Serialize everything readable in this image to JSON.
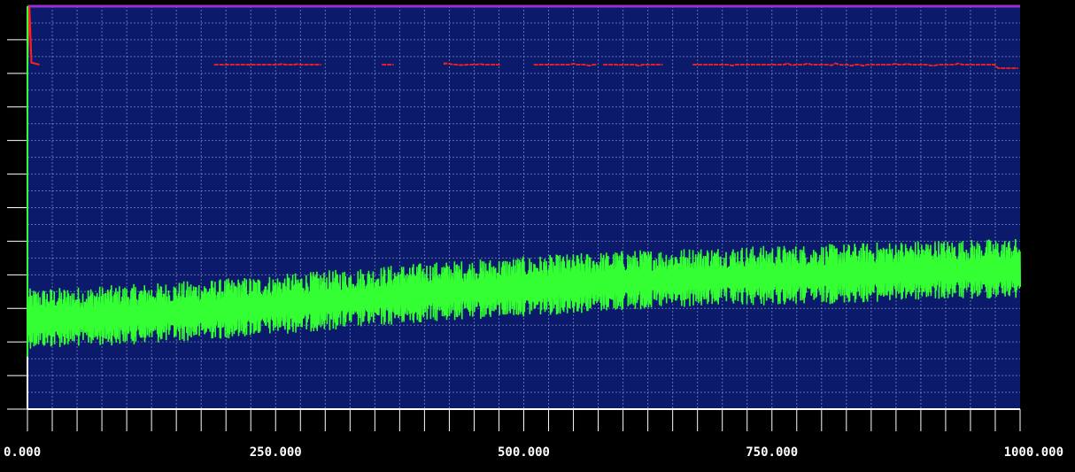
{
  "chart_data": {
    "type": "line",
    "title": "",
    "xlabel": "",
    "ylabel": "",
    "xlim": [
      0,
      1000
    ],
    "x_tick_labels": [
      "0.000",
      "250.000",
      "500.000",
      "750.000",
      "1000.000"
    ],
    "x_tick_values": [
      0,
      250,
      500,
      750,
      1000
    ],
    "y_tick_count": 12,
    "grid": true,
    "series": [
      {
        "color": "#ff2020",
        "description_points": [
          [
            0,
            0.85
          ],
          [
            2,
            1.0
          ],
          [
            4,
            0.86
          ],
          [
            12,
            0.855
          ],
          [
            190,
            0.855
          ],
          [
            300,
            0.855
          ],
          [
            370,
            0.855
          ],
          [
            450,
            0.855
          ],
          [
            530,
            0.855
          ],
          [
            620,
            0.855
          ],
          [
            700,
            0.855
          ],
          [
            800,
            0.853
          ],
          [
            900,
            0.855
          ],
          [
            1000,
            0.853
          ]
        ]
      },
      {
        "color": "#33ff33",
        "trend_points": [
          [
            0,
            0.22
          ],
          [
            100,
            0.23
          ],
          [
            200,
            0.245
          ],
          [
            300,
            0.265
          ],
          [
            400,
            0.285
          ],
          [
            500,
            0.3
          ],
          [
            600,
            0.315
          ],
          [
            700,
            0.325
          ],
          [
            800,
            0.33
          ],
          [
            900,
            0.34
          ],
          [
            1000,
            0.345
          ]
        ],
        "amplitude": 0.08
      }
    ],
    "colors": {
      "plot_background": "#0c1a6b",
      "grid": "#7f8fbf",
      "axis": "#ffffff",
      "frame_top": "#9b30d0",
      "page_background": "#000000"
    }
  }
}
